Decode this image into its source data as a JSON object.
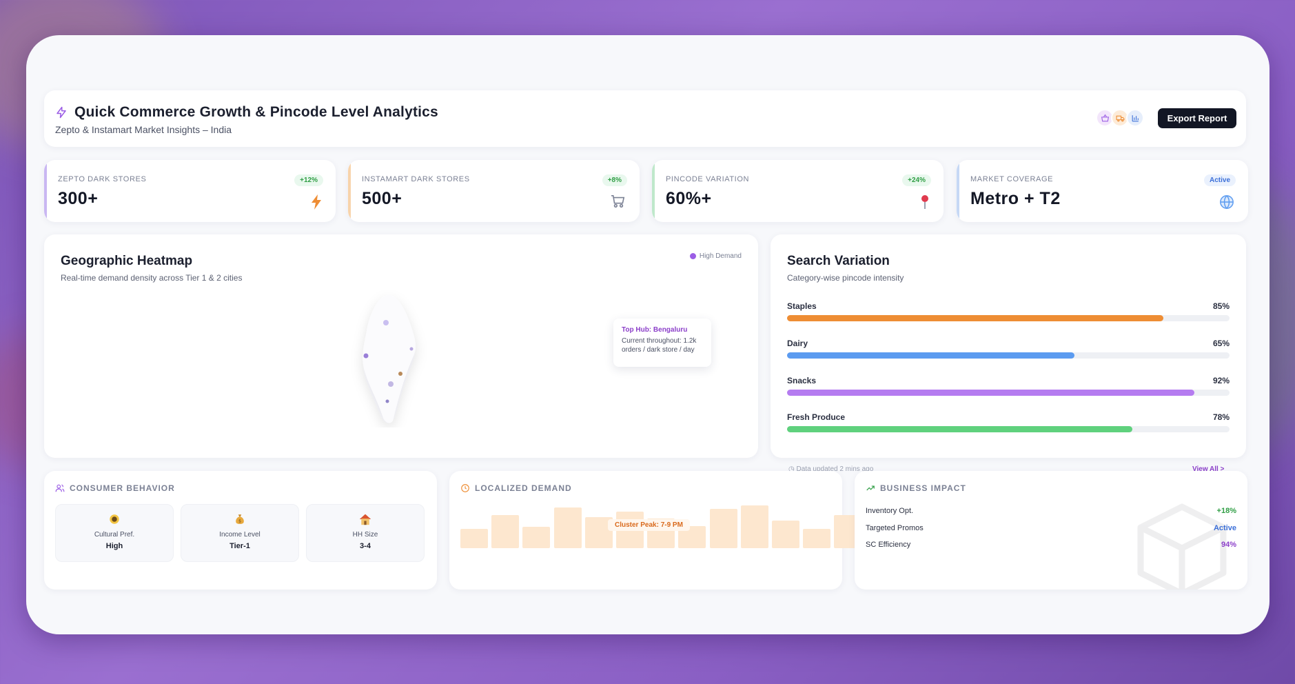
{
  "header": {
    "title": "Quick Commerce Growth & Pincode Level Analytics",
    "subtitle": "Zepto & Instamart Market Insights – India",
    "export_label": "Export Report",
    "brand_icons": [
      "basket-icon",
      "truck-icon",
      "bar-chart-icon"
    ]
  },
  "stats": [
    {
      "label": "Zepto Dark Stores",
      "value": "300+",
      "badge": "+12%",
      "icon": "lightning-icon",
      "accent": "#c9b7f2",
      "badge_color": "#2f9e44",
      "badge_bg": "#e9f8ee"
    },
    {
      "label": "Instamart Dark Stores",
      "value": "500+",
      "badge": "+8%",
      "icon": "cart-icon",
      "accent": "#f8d4ab",
      "badge_color": "#2f9e44",
      "badge_bg": "#e9f8ee"
    },
    {
      "label": "Pincode Variation",
      "value": "60%+",
      "badge": "+24%",
      "icon": "pin-icon",
      "accent": "#bfe8cb",
      "badge_color": "#2f9e44",
      "badge_bg": "#e9f8ee"
    },
    {
      "label": "Market Coverage",
      "value": "Metro + T2",
      "badge": "Active",
      "icon": "globe-icon",
      "accent": "#c6d8f5",
      "badge_color": "#3b6fd8",
      "badge_bg": "#eaf1fd"
    }
  ],
  "heatmap": {
    "title": "Geographic Heatmap",
    "subtitle": "Real-time demand density across Tier 1 & 2 cities",
    "legend": "High Demand",
    "tooltip_title": "Top Hub: Bengaluru",
    "tooltip_line1": "Current throughout: 1.2k",
    "tooltip_line2": "orders / dark store / day"
  },
  "search": {
    "title": "Search Variation",
    "subtitle": "Category-wise pincode intensity",
    "bars": [
      {
        "label": "Staples",
        "pct_text": "85%",
        "value": 85,
        "color": "#ee8d34"
      },
      {
        "label": "Dairy",
        "pct_text": "65%",
        "value": 65,
        "color": "#5b9bf0"
      },
      {
        "label": "Snacks",
        "pct_text": "92%",
        "value": 92,
        "color": "#b57cf0"
      },
      {
        "label": "Fresh Produce",
        "pct_text": "78%",
        "value": 78,
        "color": "#5fd17d"
      }
    ],
    "footnote": "Data updated 2 mins ago",
    "view_all": "View All >"
  },
  "consumer": {
    "heading": "Consumer Behavior",
    "tiles": [
      {
        "icon": "medal-icon",
        "label": "Cultural Pref.",
        "value": "High"
      },
      {
        "icon": "money-bag-icon",
        "label": "Income Level",
        "value": "Tier-1"
      },
      {
        "icon": "house-icon",
        "label": "HH Size",
        "value": "3-4"
      }
    ]
  },
  "demand": {
    "heading": "Localized Demand",
    "peak": "Cluster Peak: 7-9 PM",
    "levels": [
      0.45,
      0.78,
      0.5,
      0.95,
      0.72,
      0.85,
      0.7,
      0.52,
      0.92,
      1.0,
      0.65,
      0.45,
      0.78
    ]
  },
  "impact": {
    "heading": "Business Impact",
    "rows": [
      {
        "label": "Inventory Opt.",
        "value": "+18%",
        "color": "#2f9e44"
      },
      {
        "label": "Targeted Promos",
        "value": "Active",
        "color": "#3b6fd8"
      },
      {
        "label": "SC Efficiency",
        "value": "94%",
        "color": "#8b3ec9"
      }
    ]
  }
}
